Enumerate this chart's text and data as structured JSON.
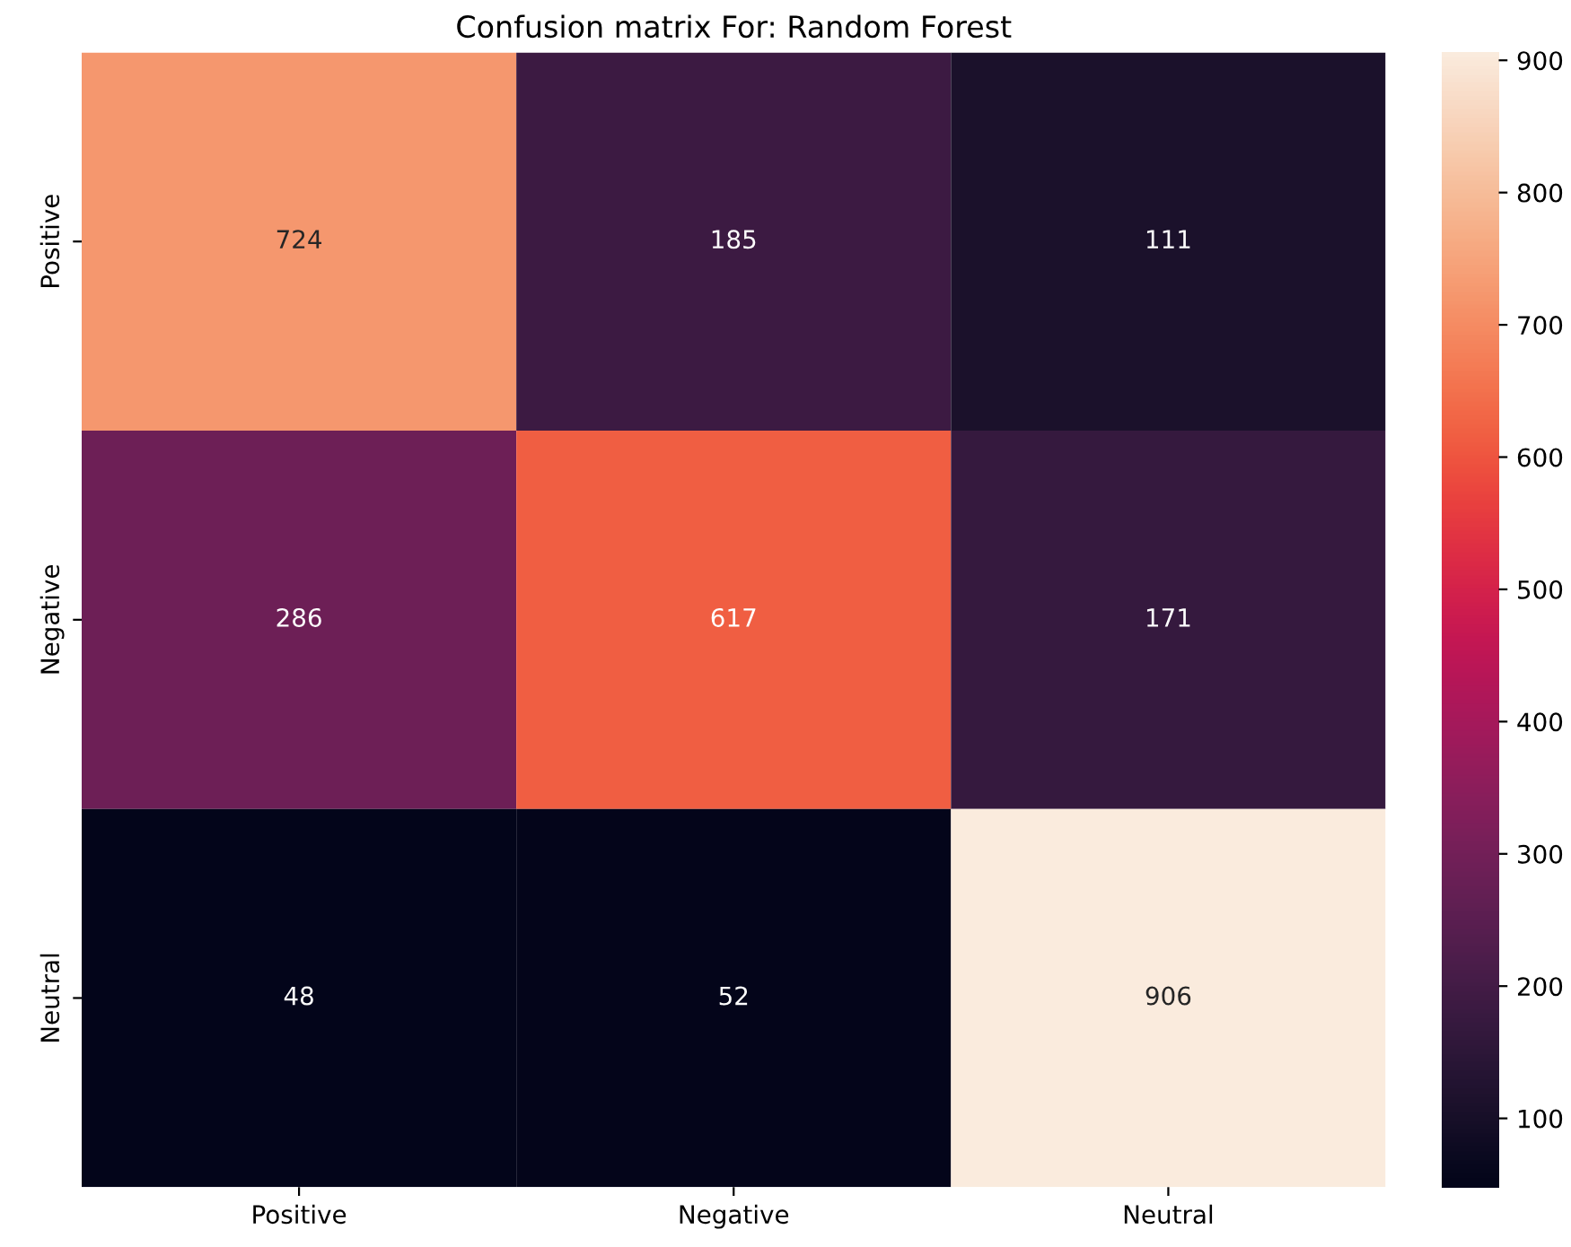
{
  "chart_data": {
    "type": "heatmap",
    "title": "Confusion matrix For: Random Forest",
    "categories": [
      "Positive",
      "Negative",
      "Neutral"
    ],
    "y_categories": [
      "Positive",
      "Negative",
      "Neutral"
    ],
    "cells": [
      [
        724,
        185,
        111
      ],
      [
        286,
        617,
        171
      ],
      [
        48,
        52,
        906
      ]
    ],
    "data_labels": true,
    "clim": [
      48,
      906
    ],
    "cticks": [
      100,
      200,
      300,
      400,
      500,
      600,
      700,
      800,
      900
    ]
  }
}
